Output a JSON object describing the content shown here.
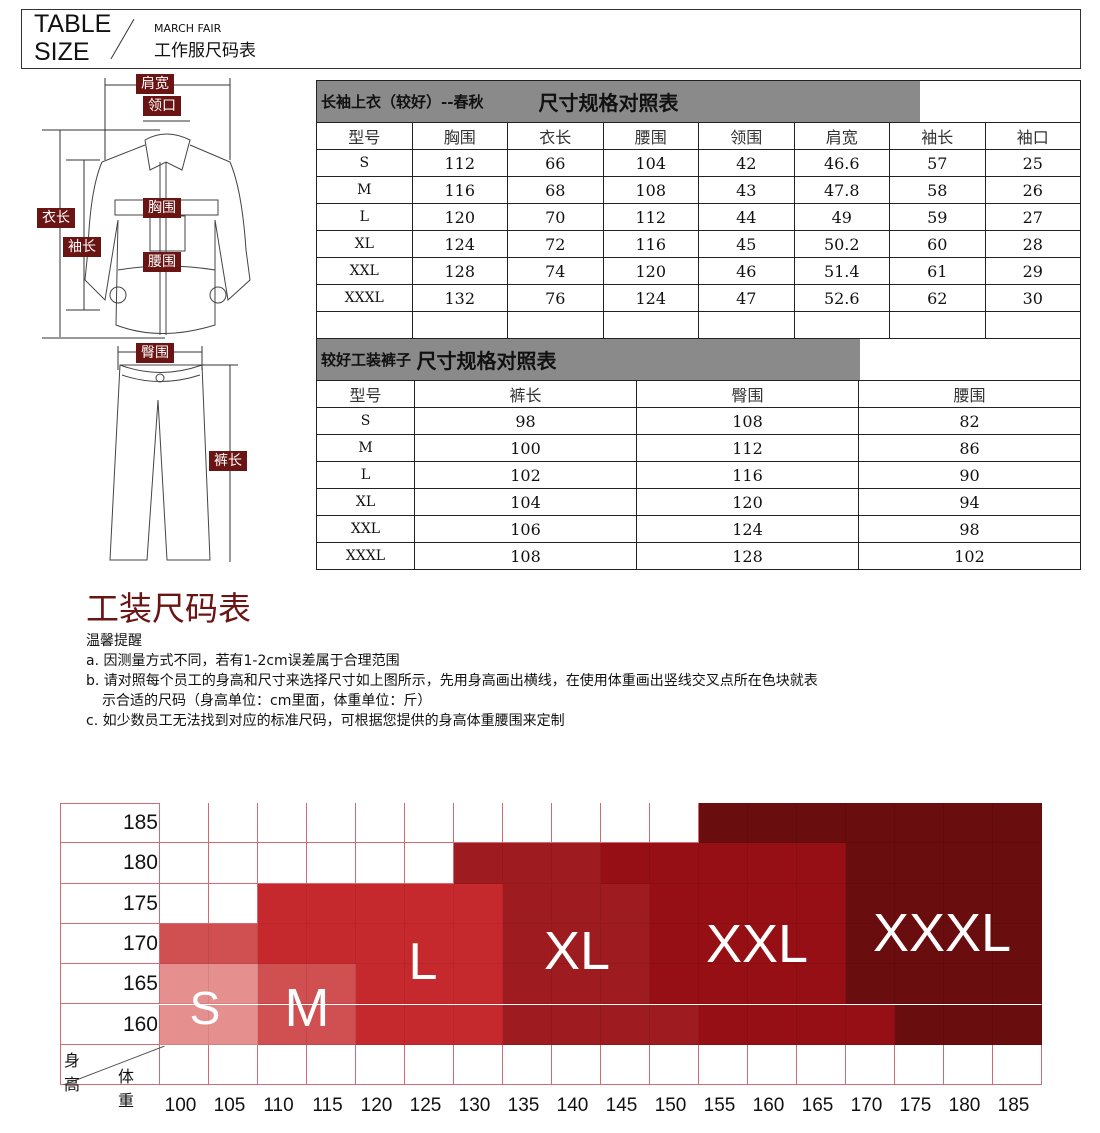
{
  "header": {
    "title_line1": "TABLE",
    "title_line2": "SIZE",
    "subtitle_en": "MARCH FAIR",
    "subtitle_cn": "工作服尺码表"
  },
  "diagram": {
    "labels": {
      "shoulder": "肩宽",
      "collar": "领口",
      "chest": "胸围",
      "length": "衣长",
      "sleeve": "袖长",
      "waist": "腰围",
      "hip": "臀围",
      "pants_length": "裤长"
    }
  },
  "jacket_table": {
    "title_left": "长袖上衣（较好）--春秋",
    "title_right": "尺寸规格对照表",
    "headers": [
      "型号",
      "胸围",
      "衣长",
      "腰围",
      "领围",
      "肩宽",
      "袖长",
      "袖口"
    ],
    "rows": [
      [
        "S",
        "112",
        "66",
        "104",
        "42",
        "46.6",
        "57",
        "25"
      ],
      [
        "M",
        "116",
        "68",
        "108",
        "43",
        "47.8",
        "58",
        "26"
      ],
      [
        "L",
        "120",
        "70",
        "112",
        "44",
        "49",
        "59",
        "27"
      ],
      [
        "XL",
        "124",
        "72",
        "116",
        "45",
        "50.2",
        "60",
        "28"
      ],
      [
        "XXL",
        "128",
        "74",
        "120",
        "46",
        "51.4",
        "61",
        "29"
      ],
      [
        "XXXL",
        "132",
        "76",
        "124",
        "47",
        "52.6",
        "62",
        "30"
      ],
      [
        "",
        "",
        "",
        "",
        "",
        "",
        "",
        ""
      ]
    ]
  },
  "pants_table": {
    "title_left": "较好工装裤子",
    "title_right": "尺寸规格对照表",
    "headers": [
      "型号",
      "裤长",
      "臀围",
      "腰围"
    ],
    "rows": [
      [
        "S",
        "98",
        "108",
        "82"
      ],
      [
        "M",
        "100",
        "112",
        "86"
      ],
      [
        "L",
        "102",
        "116",
        "90"
      ],
      [
        "XL",
        "104",
        "120",
        "94"
      ],
      [
        "XXL",
        "106",
        "124",
        "98"
      ],
      [
        "XXXL",
        "108",
        "128",
        "102"
      ]
    ]
  },
  "tips": {
    "title": "工装尺码表",
    "heading": "温馨提醒",
    "lines": [
      "a. 因测量方式不同，若有1-2cm误差属于合理范围",
      "b. 请对照每个员工的身高和尺寸来选择尺寸如上图所示，先用身高画出横线，在使用体重画出竖线交叉点所在色块就表",
      "示合适的尺码（身高单位：cm里面，体重单位：斤）",
      "c. 如少数员工无法找到对应的标准尺码，可根据您提供的身高体重腰围来定制"
    ]
  },
  "size_grid": {
    "corner_height_label": "身高",
    "corner_weight_label": "体重",
    "heights": [
      "185",
      "180",
      "175",
      "170",
      "165",
      "160"
    ],
    "weights": [
      "100",
      "105",
      "110",
      "115",
      "120",
      "125",
      "130",
      "135",
      "140",
      "145",
      "150",
      "155",
      "160",
      "165",
      "170",
      "175",
      "180",
      "185"
    ],
    "cells": [
      [
        "",
        "",
        "",
        "",
        "",
        "",
        "",
        "",
        "",
        "",
        "",
        "XXXL",
        "XXXL",
        "XXXL",
        "XXXL",
        "XXXL",
        "XXXL",
        "XXXL"
      ],
      [
        "",
        "",
        "",
        "",
        "",
        "",
        "XL",
        "XL",
        "XL",
        "XXL",
        "XXL",
        "XXL",
        "XXL",
        "XXL",
        "XXXL",
        "XXXL",
        "XXXL",
        "XXXL"
      ],
      [
        "",
        "",
        "L",
        "L",
        "L",
        "L",
        "L",
        "XL",
        "XL",
        "XL",
        "XXL",
        "XXL",
        "XXL",
        "XXL",
        "XXXL",
        "XXXL",
        "XXXL",
        "XXXL"
      ],
      [
        "M",
        "M",
        "L",
        "L",
        "L",
        "L",
        "L",
        "XL",
        "XL",
        "XL",
        "XXL",
        "XXL",
        "XXL",
        "XXL",
        "XXXL",
        "XXXL",
        "XXXL",
        "XXXL"
      ],
      [
        "S",
        "S",
        "M",
        "M",
        "L",
        "L",
        "L",
        "XL",
        "XL",
        "XL",
        "XXL",
        "XXL",
        "XXL",
        "XXL",
        "XXXL",
        "XXXL",
        "XXXL",
        "XXXL"
      ],
      [
        "S",
        "S",
        "M",
        "M",
        "L",
        "L",
        "L",
        "XL",
        "XL",
        "XL",
        "XL",
        "XXL",
        "XXL",
        "XXL",
        "XXL",
        "XXXL",
        "XXXL",
        "XXXL"
      ]
    ],
    "size_labels": [
      "S",
      "M",
      "L",
      "XL",
      "XXL",
      "XXXL"
    ],
    "colors": {
      "S": "#e58f8f",
      "M": "#d04f50",
      "L": "#c6292d",
      "XL": "#9e1c20",
      "XXL": "#960f14",
      "XXXL": "#6a0d0f",
      "grid": "#d16a72",
      "label_bg": "#6b1414"
    }
  }
}
